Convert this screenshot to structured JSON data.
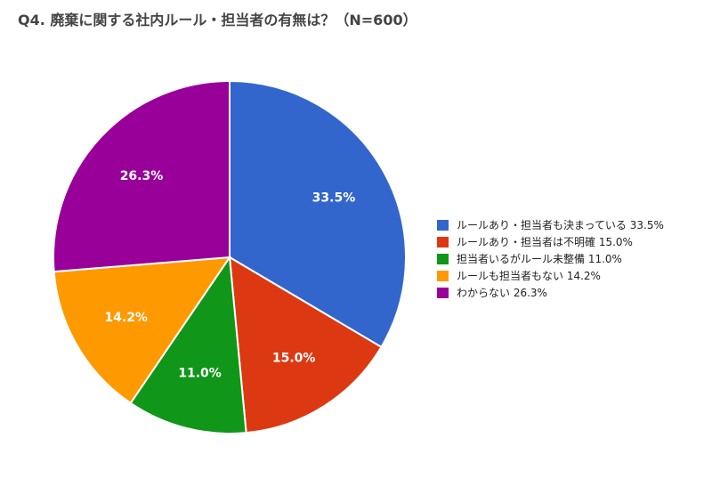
{
  "chart_data": {
    "type": "pie",
    "title": "Q4. 廃棄に関する社内ルール・担当者の有無は？（N=600）",
    "legend_position": "right",
    "slices": [
      {
        "name": "ルールあり・担当者も決まっている",
        "value": 33.5,
        "label": "33.5%",
        "legend": "ルールあり・担当者も決まっている  33.5%",
        "color": "#3366cc"
      },
      {
        "name": "ルールあり・担当者は不明確",
        "value": 15.0,
        "label": "15.0%",
        "legend": "ルールあり・担当者は不明確  15.0%",
        "color": "#dc3912"
      },
      {
        "name": "担当者いるがルール未整備",
        "value": 11.0,
        "label": "11.0%",
        "legend": "担当者いるがルール未整備  11.0%",
        "color": "#109618"
      },
      {
        "name": "ルールも担当者もない",
        "value": 14.2,
        "label": "14.2%",
        "legend": "ルールも担当者もない  14.2%",
        "color": "#ff9900"
      },
      {
        "name": "わからない",
        "value": 26.3,
        "label": "26.3%",
        "legend": "わからない  26.3%",
        "color": "#990099"
      }
    ]
  }
}
